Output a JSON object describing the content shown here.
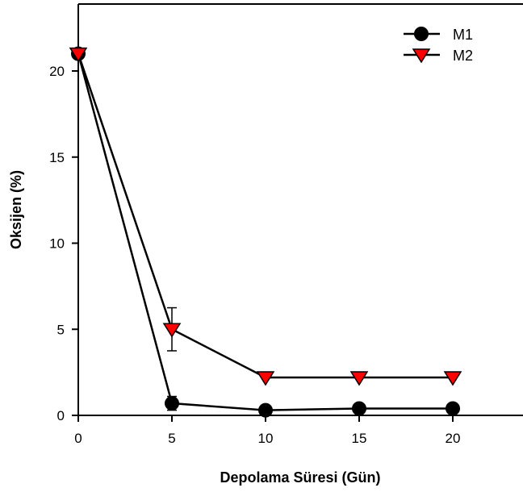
{
  "chart_data": {
    "type": "line",
    "title": "",
    "xlabel": "Depolama Süresi (Gün)",
    "ylabel": "Oksijen (%)",
    "xlim": [
      0,
      24
    ],
    "ylim": [
      0,
      24
    ],
    "xticks": [
      0,
      5,
      10,
      15,
      20
    ],
    "yticks": [
      0,
      5,
      10,
      15,
      20
    ],
    "grid": false,
    "legend_position": "top-right",
    "series": [
      {
        "name": "M1",
        "marker": "circle",
        "color": "#000000",
        "x": [
          0,
          5,
          10,
          15,
          20
        ],
        "y": [
          21.0,
          0.7,
          0.3,
          0.4,
          0.4
        ],
        "error": [
          0,
          0.4,
          0,
          0,
          0
        ]
      },
      {
        "name": "M2",
        "marker": "triangle-down",
        "color": "#ff0000",
        "x": [
          0,
          5,
          10,
          15,
          20
        ],
        "y": [
          21.0,
          5.0,
          2.2,
          2.2,
          2.2
        ],
        "error": [
          0,
          1.25,
          0,
          0,
          0
        ]
      }
    ]
  }
}
